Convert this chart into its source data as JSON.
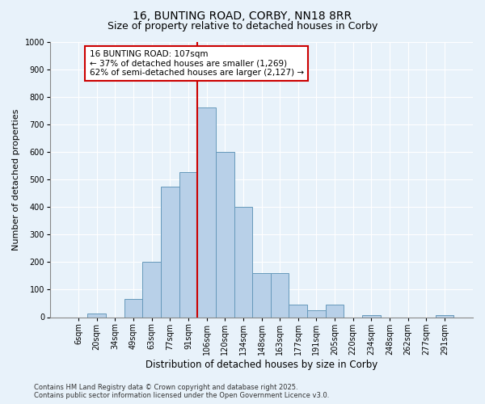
{
  "title": "16, BUNTING ROAD, CORBY, NN18 8RR",
  "subtitle": "Size of property relative to detached houses in Corby",
  "xlabel": "Distribution of detached houses by size in Corby",
  "ylabel": "Number of detached properties",
  "categories": [
    "6sqm",
    "20sqm",
    "34sqm",
    "49sqm",
    "63sqm",
    "77sqm",
    "91sqm",
    "106sqm",
    "120sqm",
    "134sqm",
    "148sqm",
    "163sqm",
    "177sqm",
    "191sqm",
    "205sqm",
    "220sqm",
    "234sqm",
    "248sqm",
    "262sqm",
    "277sqm",
    "291sqm"
  ],
  "values": [
    0,
    12,
    0,
    65,
    200,
    475,
    525,
    760,
    600,
    400,
    160,
    160,
    45,
    25,
    45,
    0,
    8,
    0,
    0,
    0,
    8
  ],
  "bar_color": "#b8d0e8",
  "bar_edge_color": "#6699bb",
  "vline_index": 7,
  "vline_color": "#cc0000",
  "annotation_text": "16 BUNTING ROAD: 107sqm\n← 37% of detached houses are smaller (1,269)\n62% of semi-detached houses are larger (2,127) →",
  "annotation_box_facecolor": "#ffffff",
  "annotation_box_edgecolor": "#cc0000",
  "annotation_fontsize": 7.5,
  "footnote1": "Contains HM Land Registry data © Crown copyright and database right 2025.",
  "footnote2": "Contains public sector information licensed under the Open Government Licence v3.0.",
  "background_color": "#e8f2fa",
  "ylim": [
    0,
    1000
  ],
  "yticks": [
    0,
    100,
    200,
    300,
    400,
    500,
    600,
    700,
    800,
    900,
    1000
  ],
  "grid_color": "#ffffff",
  "title_fontsize": 10,
  "subtitle_fontsize": 9,
  "xlabel_fontsize": 8.5,
  "ylabel_fontsize": 8,
  "tick_fontsize": 7,
  "footnote_fontsize": 6
}
